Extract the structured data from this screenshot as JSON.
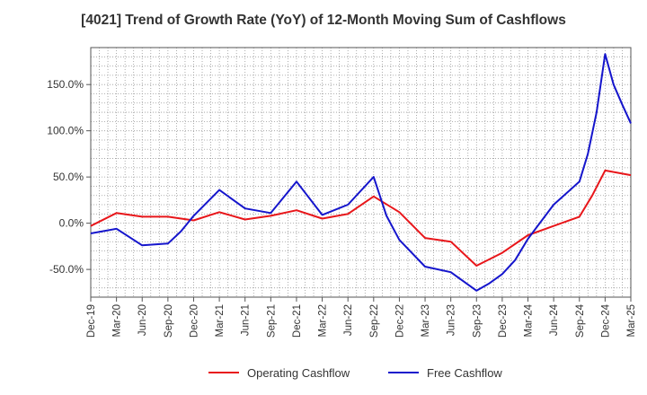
{
  "chart_data": {
    "type": "line",
    "title": "[4021]  Trend of Growth Rate (YoY) of 12-Month Moving Sum of Cashflows",
    "xlabel": "",
    "ylabel": "",
    "ylim": [
      -80,
      190
    ],
    "y_ticks": [
      -50,
      0,
      50,
      100,
      150
    ],
    "y_tick_labels": [
      "-50.0%",
      "0.0%",
      "50.0%",
      "100.0%",
      "150.0%"
    ],
    "x_tick_labels": [
      "Dec-19",
      "Mar-20",
      "Jun-20",
      "Sep-20",
      "Dec-20",
      "Mar-21",
      "Jun-21",
      "Sep-21",
      "Dec-21",
      "Mar-22",
      "Jun-22",
      "Sep-22",
      "Dec-22",
      "Mar-23",
      "Jun-23",
      "Sep-23",
      "Dec-23",
      "Mar-24",
      "Jun-24",
      "Sep-24",
      "Dec-24",
      "Mar-25"
    ],
    "grid": true,
    "legend_position": "bottom-center",
    "series": [
      {
        "name": "Operating Cashflow",
        "color": "#e8161a",
        "points": [
          [
            0,
            -3
          ],
          [
            1,
            11
          ],
          [
            2,
            7
          ],
          [
            3,
            7
          ],
          [
            4,
            3
          ],
          [
            5,
            12
          ],
          [
            6,
            4
          ],
          [
            7,
            8
          ],
          [
            8,
            14
          ],
          [
            9,
            5
          ],
          [
            10,
            10
          ],
          [
            11,
            29
          ],
          [
            12,
            12
          ],
          [
            13,
            -16
          ],
          [
            14,
            -20
          ],
          [
            15,
            -46
          ],
          [
            16,
            -32
          ],
          [
            17,
            -13
          ],
          [
            18,
            -3
          ],
          [
            19,
            7
          ],
          [
            19.5,
            30
          ],
          [
            20,
            57
          ],
          [
            21,
            52
          ]
        ]
      },
      {
        "name": "Free Cashflow",
        "color": "#1515cc",
        "points": [
          [
            0,
            -11
          ],
          [
            1,
            -6
          ],
          [
            2,
            -24
          ],
          [
            3,
            -22
          ],
          [
            3.5,
            -9
          ],
          [
            4,
            8
          ],
          [
            5,
            36
          ],
          [
            6,
            16
          ],
          [
            7,
            11
          ],
          [
            8,
            45
          ],
          [
            9,
            9
          ],
          [
            10,
            20
          ],
          [
            11,
            50
          ],
          [
            11.5,
            8
          ],
          [
            12,
            -18
          ],
          [
            13,
            -47
          ],
          [
            14,
            -53
          ],
          [
            15,
            -73
          ],
          [
            15.5,
            -65
          ],
          [
            16,
            -55
          ],
          [
            16.5,
            -40
          ],
          [
            17,
            -17
          ],
          [
            18,
            20
          ],
          [
            19,
            45
          ],
          [
            19.33,
            75
          ],
          [
            19.67,
            120
          ],
          [
            20,
            183
          ],
          [
            20.33,
            150
          ],
          [
            20.67,
            128
          ],
          [
            21,
            108
          ]
        ]
      }
    ]
  }
}
